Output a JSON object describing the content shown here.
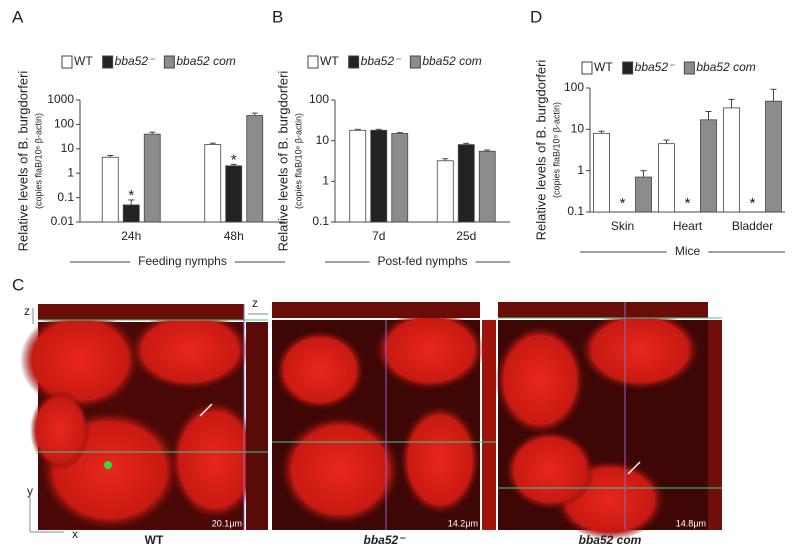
{
  "chart_data": [
    {
      "type": "bar",
      "panel": "A",
      "ylabel": "Relative levels of B. burgdorferi",
      "ylabel_sub": "(copies flaB/10⁶ β-actin)",
      "xlabel": "Feeding nymphs",
      "log_y": true,
      "categories": [
        "24h",
        "48h"
      ],
      "ylim": [
        0.01,
        1000
      ],
      "yticks": [
        0.01,
        0.1,
        1,
        10,
        100,
        1000
      ],
      "series": [
        {
          "name": "WT",
          "color": "#ffffff",
          "values": [
            4.5,
            15
          ],
          "errors": [
            0.8,
            2
          ]
        },
        {
          "name": "bba52⁻",
          "color": "#222222",
          "values": [
            0.05,
            2
          ],
          "errors": [
            0.03,
            0.3
          ]
        },
        {
          "name": "bba52 com",
          "color": "#8c8c8c",
          "values": [
            40,
            230
          ],
          "errors": [
            8,
            60
          ]
        }
      ],
      "annotations": [
        {
          "text": "*",
          "category": "24h",
          "series": "bba52⁻"
        },
        {
          "text": "*",
          "category": "48h",
          "series": "bba52⁻"
        }
      ]
    },
    {
      "type": "bar",
      "panel": "B",
      "ylabel": "Relative levels of B. burgdorferi",
      "ylabel_sub": "(copies flaB/10⁶ β-actin)",
      "xlabel": "Post-fed nymphs",
      "log_y": true,
      "categories": [
        "7d",
        "25d"
      ],
      "ylim": [
        0.1,
        100
      ],
      "yticks": [
        0.1,
        1,
        10,
        100
      ],
      "series": [
        {
          "name": "WT",
          "color": "#ffffff",
          "values": [
            18,
            3.2
          ],
          "errors": [
            1,
            0.4
          ]
        },
        {
          "name": "bba52⁻",
          "color": "#222222",
          "values": [
            18,
            8
          ],
          "errors": [
            1,
            0.6
          ]
        },
        {
          "name": "bba52 com",
          "color": "#8c8c8c",
          "values": [
            15,
            5.5
          ],
          "errors": [
            0.8,
            0.4
          ]
        }
      ],
      "annotations": []
    },
    {
      "type": "bar",
      "panel": "D",
      "ylabel": "Relative levels of B. burgdorferi",
      "ylabel_sub": "(copies flaB/10⁵ β-actin)",
      "xlabel": "Mice",
      "log_y": true,
      "categories": [
        "Skin",
        "Heart",
        "Bladder"
      ],
      "ylim": [
        0.1,
        100
      ],
      "yticks": [
        0.1,
        1,
        10,
        100
      ],
      "series": [
        {
          "name": "WT",
          "color": "#ffffff",
          "values": [
            8,
            4.5,
            33
          ],
          "errors": [
            1,
            1,
            20
          ]
        },
        {
          "name": "bba52⁻",
          "color": "#222222",
          "values": [
            null,
            null,
            null
          ],
          "errors": [
            null,
            null,
            null
          ]
        },
        {
          "name": "bba52 com",
          "color": "#8c8c8c",
          "values": [
            0.7,
            17,
            48
          ],
          "errors": [
            0.3,
            10,
            45
          ]
        }
      ],
      "annotations": [
        {
          "text": "*",
          "category": "Skin",
          "series": "bba52⁻"
        },
        {
          "text": "*",
          "category": "Heart",
          "series": "bba52⁻"
        },
        {
          "text": "*",
          "category": "Bladder",
          "series": "bba52⁻"
        }
      ]
    }
  ],
  "figure": {
    "panel": "C",
    "axes": {
      "z1": "z",
      "z2": "z",
      "y": "y",
      "x": "x"
    },
    "images": [
      {
        "caption": "WT",
        "scale": "20.1μm"
      },
      {
        "caption": "bba52⁻",
        "scale": "14.2μm"
      },
      {
        "caption": "bba52 com",
        "scale": "14.8μm"
      }
    ]
  }
}
